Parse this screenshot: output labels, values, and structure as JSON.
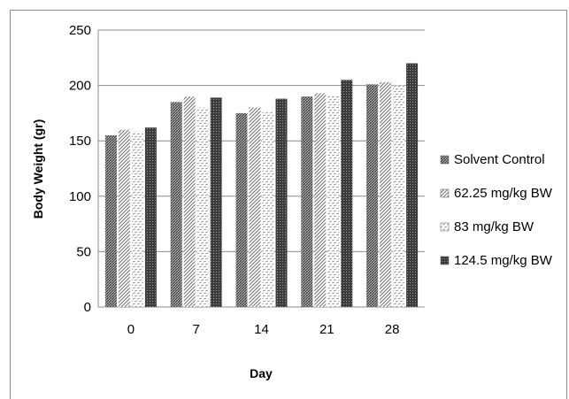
{
  "chart_data": {
    "type": "bar",
    "title": "",
    "xlabel": "Day",
    "ylabel": "Body Weight (gr)",
    "categories": [
      "0",
      "7",
      "14",
      "21",
      "28"
    ],
    "ylim": [
      0,
      250
    ],
    "yticks": [
      "0",
      "50",
      "100",
      "150",
      "200",
      "250"
    ],
    "grid": "horizontal",
    "legend_position": "right",
    "series": [
      {
        "name": "Solvent Control",
        "values": [
          155,
          185,
          175,
          190,
          201
        ],
        "pattern": "dense-diagonal"
      },
      {
        "name": "62.25 mg/kg BW",
        "values": [
          160,
          190,
          180,
          193,
          203
        ],
        "pattern": "light-diagonal"
      },
      {
        "name": "83 mg/kg BW",
        "values": [
          158,
          180,
          177,
          191,
          200
        ],
        "pattern": "light-dashes"
      },
      {
        "name": "124.5 mg/kg BW",
        "values": [
          162,
          189,
          188,
          205,
          220
        ],
        "pattern": "dark-dots"
      }
    ]
  }
}
